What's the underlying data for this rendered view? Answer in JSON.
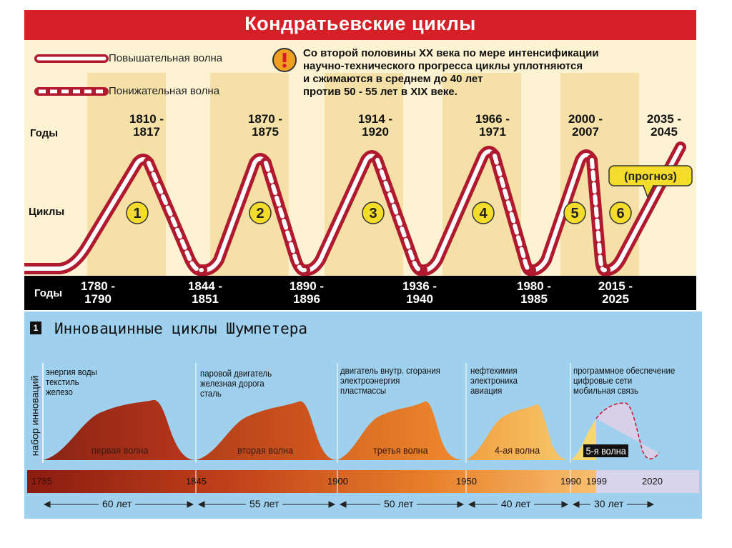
{
  "kondratiev": {
    "title": "Кондратьевские циклы",
    "legend": {
      "rising": "Повышательная волна",
      "falling": "Понижательная волна"
    },
    "note_icon": "exclamation-icon",
    "note": [
      "Со второй половины XX века  по мере интенсификации",
      "научно-технического прогресса  циклы  уплотняются",
      "и сжимаются в среднем до 40 лет",
      "против  50 - 55 лет в XIX веке."
    ],
    "row_labels": {
      "years_top": "Годы",
      "cycles": "Циклы",
      "years_bottom": "Годы"
    },
    "peaks": [
      {
        "line1": "1810 -",
        "line2": "1817"
      },
      {
        "line1": "1870 -",
        "line2": "1875"
      },
      {
        "line1": "1914 -",
        "line2": "1920"
      },
      {
        "line1": "1966 -",
        "line2": "1971"
      },
      {
        "line1": "2000 -",
        "line2": "2007"
      },
      {
        "line1": "2035 -",
        "line2": "2045"
      }
    ],
    "troughs": [
      {
        "line1": "1780 -",
        "line2": "1790"
      },
      {
        "line1": "1844 -",
        "line2": "1851"
      },
      {
        "line1": "1890 -",
        "line2": "1896"
      },
      {
        "line1": "1936 -",
        "line2": "1940"
      },
      {
        "line1": "1980 -",
        "line2": "1985"
      },
      {
        "line1": "2015 -",
        "line2": "2025"
      }
    ],
    "cycles": [
      "1",
      "2",
      "3",
      "4",
      "5",
      "6"
    ],
    "forecast": "(прогноз)",
    "colors": {
      "wave": "#b11a2e",
      "wave_inner": "#ffffff",
      "header": "#d61f26",
      "band": "#f5e4b0",
      "badge": "#f4dc2a"
    }
  },
  "schumpeter": {
    "badge": "1",
    "title": "Инновацинные циклы Шумпетера",
    "y_axis": "набор инноваций",
    "waves": [
      {
        "label": "первая волна",
        "innovations": [
          "энергия воды",
          "текстиль",
          "железо"
        ]
      },
      {
        "label": "вторая волна",
        "innovations": [
          "паровой двигатель",
          "железная дорога",
          "сталь"
        ]
      },
      {
        "label": "третья волна",
        "innovations": [
          "двигатель внутр. сгорания",
          "электроэнергия",
          "пластмассы"
        ]
      },
      {
        "label": "4-ая волна",
        "innovations": [
          "нефтехимия",
          "электроника",
          "авиация"
        ]
      },
      {
        "label": "5-я волна",
        "innovations": [
          "программное обеспечение",
          "цифровые сети",
          "мобильная связь"
        ]
      }
    ],
    "timeline": [
      "1785",
      "1845",
      "1900",
      "1950",
      "1990",
      "1999",
      "2020"
    ],
    "durations": [
      "60 лет",
      "55 лет",
      "50 лет",
      "40 лет",
      "30 лет"
    ],
    "colors": {
      "wave1": "#a8301c",
      "wave2": "#c24a1e",
      "wave3": "#e07a2a",
      "wave4": "#f2b15a",
      "wave5": "#f7dc8a",
      "forecast": "#d8d0e8",
      "background": "#9fd0ee"
    }
  }
}
